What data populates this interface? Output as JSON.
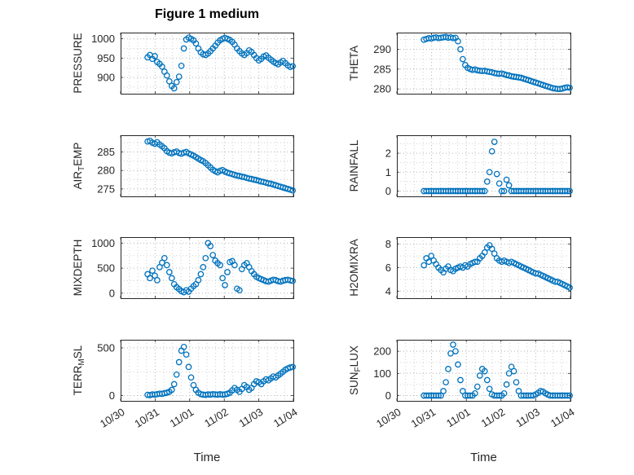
{
  "xlabel": "Time",
  "x_tick_labels": [
    "10/30",
    "10/31",
    "11/01",
    "11/02",
    "11/03",
    "11/04"
  ],
  "xlim": [
    0,
    5
  ],
  "x_unit": "days since 10/30",
  "colors": {
    "marker": "#0072BD",
    "axis": "#262626",
    "text": "#262626",
    "grid_major": "#b4b4b4",
    "grid_minor": "#cfcfcf",
    "background": "#ffffff"
  },
  "time_days": [
    0.78,
    0.85,
    0.92,
    0.99,
    1.06,
    1.13,
    1.2,
    1.27,
    1.34,
    1.41,
    1.48,
    1.55,
    1.62,
    1.69,
    1.76,
    1.83,
    1.9,
    1.97,
    2.04,
    2.11,
    2.18,
    2.25,
    2.32,
    2.39,
    2.46,
    2.53,
    2.6,
    2.67,
    2.74,
    2.81,
    2.88,
    2.95,
    3.02,
    3.09,
    3.16,
    3.23,
    3.3,
    3.37,
    3.44,
    3.51,
    3.58,
    3.65,
    3.72,
    3.79,
    3.86,
    3.93,
    4.0,
    4.07,
    4.14,
    4.21,
    4.28,
    4.35,
    4.42,
    4.49,
    4.56,
    4.63,
    4.7,
    4.77,
    4.84,
    4.91,
    4.98
  ],
  "chart_data": [
    {
      "type": "scatter",
      "name": "PRESSURE",
      "title": "Figure 1 medium",
      "ylabel": "PRESSURE",
      "yticks": [
        900,
        950,
        1000
      ],
      "ylim": [
        858,
        1016
      ],
      "marker": "open-circle",
      "values": [
        952,
        958,
        948,
        955,
        940,
        935,
        928,
        915,
        905,
        890,
        878,
        872,
        888,
        902,
        930,
        975,
        998,
        1003,
        1000,
        996,
        988,
        975,
        965,
        960,
        958,
        962,
        968,
        975,
        982,
        990,
        996,
        1000,
        1002,
        1000,
        997,
        992,
        985,
        975,
        968,
        962,
        958,
        963,
        970,
        966,
        958,
        950,
        944,
        948,
        954,
        957,
        951,
        946,
        941,
        937,
        934,
        939,
        943,
        937,
        931,
        927,
        929
      ]
    },
    {
      "type": "scatter",
      "name": "THETA",
      "ylabel": "THETA",
      "yticks": [
        280,
        285,
        290
      ],
      "ylim": [
        278.8,
        294.2
      ],
      "marker": "open-circle",
      "values": [
        292.4,
        292.6,
        292.8,
        292.7,
        292.9,
        293,
        292.8,
        292.9,
        293,
        293.1,
        292.9,
        293,
        292.8,
        292.9,
        292,
        290,
        287.5,
        286,
        285.3,
        285,
        284.8,
        284.9,
        284.7,
        284.6,
        284.5,
        284.6,
        284.4,
        284.3,
        284.2,
        284,
        283.9,
        283.8,
        283.9,
        283.7,
        283.5,
        283.4,
        283.2,
        283.1,
        283,
        282.9,
        282.8,
        282.6,
        282.4,
        282.2,
        282,
        281.8,
        281.6,
        281.4,
        281.2,
        281,
        280.8,
        280.6,
        280.4,
        280.2,
        280.1,
        280,
        280,
        280.1,
        280.3,
        280.4,
        280.3
      ]
    },
    {
      "type": "scatter",
      "name": "AIR_TEMP",
      "ylabel": "AIR_TEMP",
      "yticks": [
        275,
        280,
        285
      ],
      "ylim": [
        273,
        289.5
      ],
      "marker": "open-circle",
      "values": [
        287.8,
        288,
        287.5,
        287.2,
        287.6,
        287,
        286.5,
        286,
        285.2,
        284.8,
        284.6,
        284.9,
        285.1,
        284.7,
        284.5,
        284.8,
        285,
        284.6,
        284.3,
        284,
        283.6,
        283.2,
        282.8,
        282.5,
        282,
        281.4,
        280.8,
        280.2,
        279.8,
        279.5,
        279.9,
        280.1,
        279.7,
        279.4,
        279.2,
        279,
        278.8,
        278.6,
        278.5,
        278.3,
        278.2,
        278,
        277.8,
        277.7,
        277.5,
        277.4,
        277.2,
        277,
        276.9,
        276.7,
        276.5,
        276.4,
        276.2,
        276,
        275.8,
        275.6,
        275.4,
        275.2,
        275,
        274.8,
        274.6
      ]
    },
    {
      "type": "scatter",
      "name": "RAINFALL",
      "ylabel": "RAINFALL",
      "yticks": [
        0,
        1,
        2
      ],
      "ylim": [
        -0.28,
        2.95
      ],
      "marker": "open-circle",
      "values": [
        0,
        0,
        0,
        0,
        0,
        0,
        0,
        0,
        0,
        0,
        0,
        0,
        0,
        0,
        0,
        0,
        0,
        0,
        0,
        0,
        0,
        0,
        0,
        0,
        0,
        0,
        0.5,
        1,
        2.1,
        2.6,
        0.9,
        0.4,
        0,
        0,
        0.6,
        0.3,
        0,
        0,
        0,
        0,
        0,
        0,
        0,
        0,
        0,
        0,
        0,
        0,
        0,
        0,
        0,
        0,
        0,
        0,
        0,
        0,
        0,
        0,
        0,
        0,
        0
      ]
    },
    {
      "type": "scatter",
      "name": "MIXDEPTH",
      "ylabel": "MIXDEPTH",
      "yticks": [
        0,
        500,
        1000
      ],
      "ylim": [
        -100,
        1120
      ],
      "marker": "open-circle",
      "values": [
        380,
        300,
        450,
        350,
        260,
        520,
        610,
        700,
        560,
        420,
        300,
        180,
        120,
        80,
        40,
        20,
        60,
        30,
        90,
        140,
        180,
        260,
        380,
        520,
        700,
        1000,
        940,
        760,
        650,
        600,
        560,
        300,
        160,
        420,
        620,
        640,
        560,
        90,
        60,
        480,
        560,
        600,
        520,
        440,
        380,
        330,
        300,
        280,
        260,
        240,
        230,
        250,
        270,
        260,
        240,
        230,
        250,
        260,
        270,
        255,
        245
      ]
    },
    {
      "type": "scatter",
      "name": "H2OMIXRA",
      "ylabel": "H2OMIXRA",
      "yticks": [
        4,
        6,
        8
      ],
      "ylim": [
        3.4,
        8.6
      ],
      "marker": "open-circle",
      "values": [
        6.2,
        6.8,
        6.5,
        7,
        6.6,
        6.3,
        6,
        5.8,
        5.6,
        5.9,
        6.1,
        5.8,
        5.7,
        5.9,
        6,
        6.1,
        6,
        6.2,
        6.1,
        6.3,
        6.4,
        6.5,
        6.5,
        6.8,
        7,
        7.3,
        7.7,
        7.9,
        7.6,
        7.2,
        6.8,
        6.6,
        6.5,
        6.6,
        6.5,
        6.4,
        6.5,
        6.4,
        6.3,
        6.2,
        6.1,
        6,
        5.9,
        5.8,
        5.7,
        5.6,
        5.5,
        5.5,
        5.4,
        5.3,
        5.2,
        5.1,
        5,
        4.9,
        4.8,
        4.8,
        4.7,
        4.6,
        4.5,
        4.4,
        4.3
      ]
    },
    {
      "type": "scatter",
      "name": "TERR_MSL",
      "ylabel": "TERR_MSL",
      "yticks": [
        0,
        500
      ],
      "ylim": [
        -55,
        585
      ],
      "marker": "open-circle",
      "values": [
        8,
        5,
        12,
        10,
        15,
        20,
        18,
        25,
        30,
        40,
        60,
        120,
        220,
        350,
        470,
        510,
        430,
        300,
        190,
        110,
        60,
        30,
        15,
        10,
        8,
        12,
        10,
        15,
        12,
        10,
        14,
        10,
        12,
        18,
        30,
        55,
        80,
        60,
        40,
        70,
        110,
        90,
        60,
        80,
        120,
        150,
        140,
        120,
        150,
        170,
        160,
        180,
        200,
        190,
        210,
        230,
        250,
        270,
        285,
        295,
        300
      ]
    },
    {
      "type": "scatter",
      "name": "SUN_FLUX",
      "ylabel": "SUN_FLUX",
      "yticks": [
        0,
        100,
        200
      ],
      "ylim": [
        -24,
        252
      ],
      "marker": "open-circle",
      "values": [
        0,
        0,
        0,
        0,
        0,
        0,
        0,
        0,
        20,
        60,
        120,
        190,
        230,
        200,
        140,
        70,
        20,
        0,
        0,
        0,
        0,
        10,
        40,
        90,
        120,
        110,
        70,
        30,
        5,
        0,
        0,
        0,
        0,
        10,
        50,
        100,
        130,
        110,
        60,
        20,
        0,
        0,
        0,
        0,
        0,
        0,
        5,
        12,
        20,
        18,
        10,
        4,
        0,
        0,
        0,
        0,
        0,
        0,
        0,
        0,
        0
      ]
    }
  ]
}
